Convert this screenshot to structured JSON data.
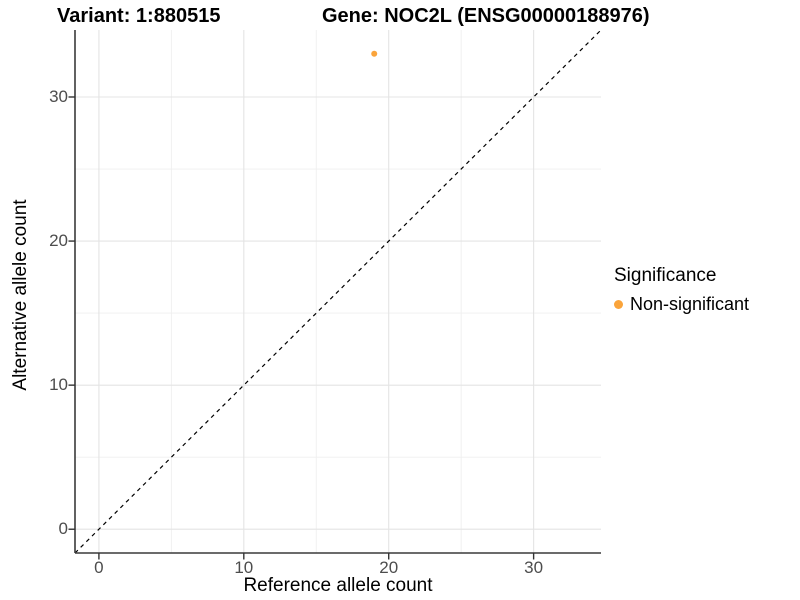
{
  "figure": {
    "title_variant": "Variant: 1:880515",
    "title_gene": "Gene: NOC2L (ENSG00000188976)"
  },
  "axes": {
    "x_label": "Reference allele count",
    "y_label": "Alternative allele count"
  },
  "legend": {
    "title": "Significance",
    "items": [
      {
        "label": "Non-significant",
        "color": "#FAA43B"
      }
    ]
  },
  "chart_data": {
    "type": "scatter",
    "title": "Variant: 1:880515 — Gene: NOC2L (ENSG00000188976)",
    "xlabel": "Reference allele count",
    "ylabel": "Alternative allele count",
    "xlim": [
      -1.65,
      34.65
    ],
    "ylim": [
      -1.65,
      34.65
    ],
    "x_ticks": [
      0,
      10,
      20,
      30
    ],
    "y_ticks": [
      0,
      10,
      20,
      30
    ],
    "x_minor_ticks": [
      5,
      15,
      25
    ],
    "y_minor_ticks": [
      5,
      15,
      25
    ],
    "grid": true,
    "legend_position": "right",
    "series": [
      {
        "name": "Non-significant",
        "color": "#FAA43B",
        "points": [
          {
            "x": 19,
            "y": 33
          }
        ]
      }
    ],
    "reference_line": {
      "type": "identity",
      "style": "dashed",
      "color": "#000000",
      "from": -1.65,
      "to": 34.65
    }
  },
  "colors": {
    "background": "#FFFFFF",
    "grid_major": "#E4E4E4",
    "grid_minor": "#EFEFEF",
    "axis_line": "#3A3A3A",
    "tick_mark": "#333333",
    "tick_label": "#4D4D4D",
    "text": "#000000",
    "point": "#FAA43B"
  }
}
